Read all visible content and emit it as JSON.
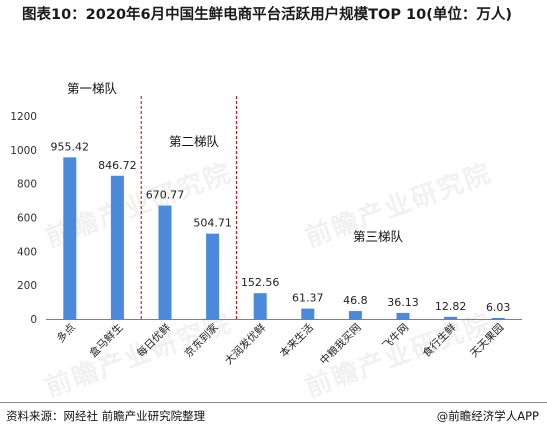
{
  "title": "图表10：2020年6月中国生鲜电商平台活跃用户规模TOP 10(单位：万人)",
  "source": "资料来源：网经社 前瞻产业研究院整理",
  "brand": "@前瞻经济学人APP",
  "watermark": "前瞻产业研究院",
  "colors": {
    "bar": "#4a89dc",
    "divider": "#c00000",
    "axis": "#7f7f7f"
  },
  "chart_data": {
    "type": "bar",
    "categories": [
      "多点",
      "盒马鲜生",
      "每日优鲜",
      "京东到家",
      "大润发优鲜",
      "本来生活",
      "中粮我买网",
      "飞牛网",
      "食行生鲜",
      "天天果园"
    ],
    "values": [
      955.42,
      846.72,
      670.77,
      504.71,
      152.56,
      61.37,
      46.8,
      36.13,
      12.82,
      6.03
    ],
    "data_labels": [
      "955.42",
      "846.72",
      "670.77",
      "504.71",
      "152.56",
      "61.37",
      "46.8",
      "36.13",
      "12.82",
      "6.03"
    ],
    "ylim": [
      0,
      1200
    ],
    "yticks": [
      0,
      200,
      400,
      600,
      800,
      1000,
      1200
    ],
    "grid": false,
    "tiers": [
      "第一梯队",
      "第二梯队",
      "第三梯队"
    ]
  }
}
